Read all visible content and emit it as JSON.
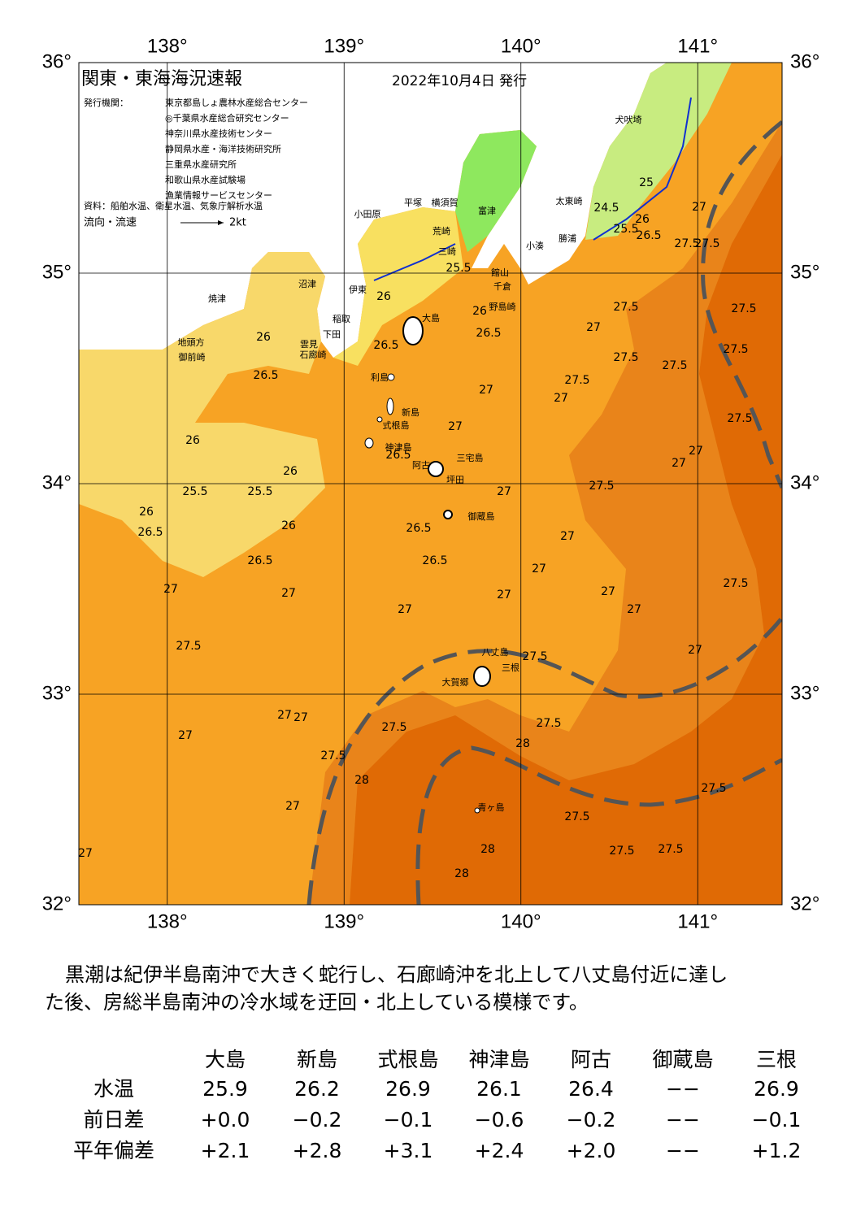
{
  "map": {
    "title": "関東・東海海況速報",
    "date": "2022年10月4日 発行",
    "issuer_label": "発行機関：",
    "issuers": [
      "東京都島しょ農林水産総合センター",
      "◎千葉県水産総合研究センター",
      "神奈川県水産技術センター",
      "静岡県水産・海洋技術研究所",
      "三重県水産研究所",
      "和歌山県水産試験場",
      "漁業情報サービスセンター"
    ],
    "source": "資料：船舶水温、衛星水温、気象庁解析水温",
    "current_label": "流向・流速",
    "current_scale": "2kt",
    "lon_ticks": [
      {
        "value": 138,
        "label": "138°"
      },
      {
        "value": 139,
        "label": "139°"
      },
      {
        "value": 140,
        "label": "140°"
      },
      {
        "value": 141,
        "label": "141°"
      }
    ],
    "lat_ticks": [
      {
        "value": 36,
        "label": "36°"
      },
      {
        "value": 35,
        "label": "35°"
      },
      {
        "value": 34,
        "label": "34°"
      },
      {
        "value": 33,
        "label": "33°"
      },
      {
        "value": 32,
        "label": "32°"
      }
    ],
    "place_names": [
      "大島",
      "利島",
      "新島",
      "式根島",
      "神津島",
      "三宅島",
      "阿古",
      "坪田",
      "御蔵島",
      "八丈島",
      "三根",
      "大賀郷",
      "青ヶ島",
      "小田原",
      "平塚",
      "横須賀",
      "富津",
      "荒崎",
      "三崎",
      "館山",
      "千倉",
      "野島崎",
      "小湊",
      "勝浦",
      "太東崎",
      "犬吠埼",
      "焼津",
      "沼津",
      "伊東",
      "稲取",
      "下田",
      "雲見",
      "石廊崎",
      "地頭方",
      "御前崎"
    ],
    "contour_labels": [
      25.5,
      26,
      26,
      26,
      26.5,
      26.5,
      26.5,
      27,
      27.5,
      27,
      27,
      27.5,
      27.5,
      27.5,
      26,
      25.5,
      25.5,
      26,
      26.5,
      27,
      27,
      27.5,
      27,
      27,
      27.5,
      27.5,
      27.5,
      27.5,
      26,
      26.5,
      26,
      26.5,
      26.5,
      26.5,
      27,
      27,
      27,
      27,
      27,
      27,
      27,
      27,
      27.5,
      27.5,
      27,
      27.5,
      27,
      27,
      27,
      27.5,
      27.5,
      27.5,
      28,
      28,
      27,
      27,
      27.5,
      27.5,
      27.5,
      27.5,
      28,
      28,
      24.5,
      25,
      25.5,
      26,
      26.5,
      27,
      27.5
    ]
  },
  "summary": [
    "黒潮は紀伊半島南沖で大きく蛇行し、石廊崎沖を北上して八丈島付近に達し",
    "た後、房総半島南沖の冷水域を迂回・北上している模様です。"
  ],
  "table": {
    "columns": [
      "大島",
      "新島",
      "式根島",
      "神津島",
      "阿古",
      "御蔵島",
      "三根"
    ],
    "rows": [
      {
        "label": "水温",
        "values": [
          "25.9",
          "26.2",
          "26.9",
          "26.1",
          "26.4",
          "−−",
          "26.9"
        ]
      },
      {
        "label": "前日差",
        "values": [
          "+0.0",
          "−0.2",
          "−0.1",
          "−0.6",
          "−0.2",
          "−−",
          "−0.1"
        ]
      },
      {
        "label": "平年偏差",
        "values": [
          "+2.1",
          "+2.8",
          "+3.1",
          "+2.4",
          "+2.0",
          "−−",
          "+1.2"
        ]
      }
    ]
  }
}
